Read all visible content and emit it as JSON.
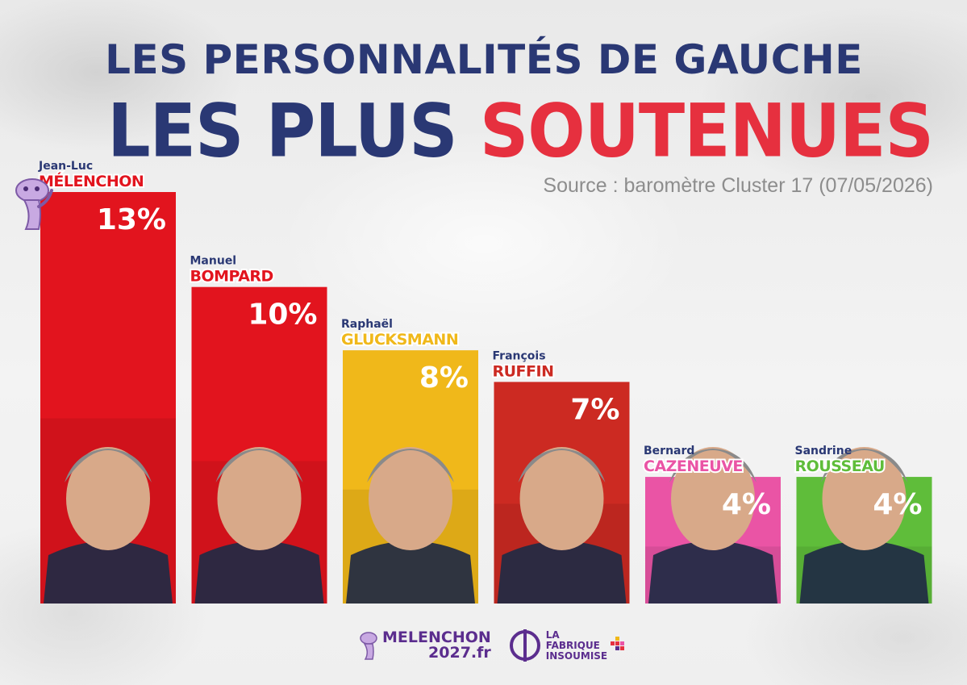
{
  "header": {
    "title_line1": "LES PERSONNALITÉS DE GAUCHE",
    "title_line2_part1": "LES PLUS",
    "title_line2_part2": "SOUTENUES",
    "source": "Source : baromètre Cluster 17 (07/05/2026)"
  },
  "chart_data": {
    "type": "bar",
    "categories": [
      "Jean-Luc MÉLENCHON",
      "Manuel BOMPARD",
      "Raphaël GLUCKSMANN",
      "François RUFFIN",
      "Bernard CAZENEUVE",
      "Sandrine ROUSSEAU"
    ],
    "values": [
      13,
      10,
      8,
      7,
      4,
      4
    ],
    "value_labels": [
      "13%",
      "10%",
      "8%",
      "7%",
      "4%",
      "4%"
    ],
    "first_names": [
      "Jean-Luc",
      "Manuel",
      "Raphaël",
      "François",
      "Bernard",
      "Sandrine"
    ],
    "last_names": [
      "MÉLENCHON",
      "BOMPARD",
      "GLUCKSMANN",
      "RUFFIN",
      "CAZENEUVE",
      "ROUSSEAU"
    ],
    "colors": [
      "#e2141e",
      "#e2141e",
      "#f0b81a",
      "#cc2a22",
      "#ea54a5",
      "#5fbd3a"
    ],
    "name_colors": [
      "#e2141e",
      "#e2141e",
      "#f0b81a",
      "#cc2a22",
      "#ea54a5",
      "#5fbd3a"
    ],
    "title": "LES PERSONNALITÉS DE GAUCHE LES PLUS SOUTENUES",
    "ylim": [
      0,
      13
    ],
    "grid": false,
    "legend": "none"
  },
  "footer": {
    "logo1_line1": "MELENCHON",
    "logo1_line2": "2027.fr",
    "logo2_line1": "LA",
    "logo2_line2": "FABRIQUE",
    "logo2_line3": "INSOUMISE"
  },
  "colors": {
    "navy": "#2a3874",
    "accent_red": "#e6303f",
    "logo_purple": "#5b2d8e"
  }
}
